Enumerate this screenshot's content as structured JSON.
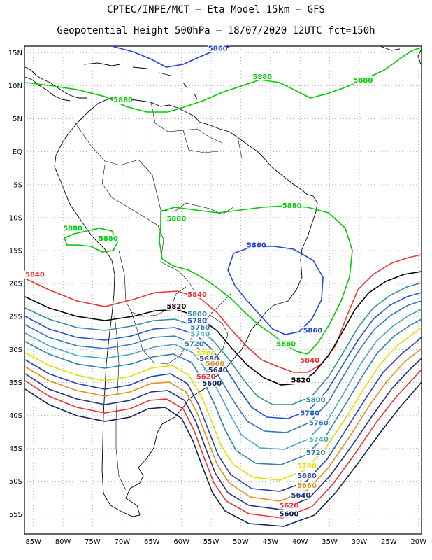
{
  "header": {
    "line1": "CPTEC/INPE/MCT –  Eta Model 15km – GFS",
    "line2": "Geopotential Height 500hPa – 18/07/2020 12UTC fct=150h"
  },
  "axes": {
    "lat_labels": [
      "15N",
      "10N",
      "5N",
      "EQ",
      "5S",
      "10S",
      "15S",
      "20S",
      "25S",
      "30S",
      "35S",
      "40S",
      "45S",
      "50S",
      "55S"
    ],
    "lon_labels": [
      "85W",
      "80W",
      "75W",
      "70W",
      "65W",
      "60W",
      "55W",
      "50W",
      "45W",
      "40W",
      "35W",
      "30W",
      "25W",
      "20W"
    ]
  },
  "colors": {
    "5880": "#00cc00",
    "5860": "#2244dd",
    "5840": "#ee3333",
    "5820": "#000000",
    "5800": "#2f8fa0",
    "5780": "#2255cc",
    "5760": "#3377bb",
    "5740": "#44a8c8",
    "5720": "#2a80b0",
    "5700": "#e0e000",
    "5680": "#2244aa",
    "5660": "#e09020",
    "5640": "#223377",
    "5620": "#ee3333",
    "5600": "#112255"
  },
  "contours": [
    {
      "level": "5860",
      "labels": [
        {
          "text": "5860",
          "lon": -55.5,
          "lat": 15.3
        }
      ]
    },
    {
      "level": "5880",
      "labels": [
        {
          "text": "5880",
          "lon": -71.5,
          "lat": 7.5
        },
        {
          "text": "5880",
          "lon": -48,
          "lat": 11
        },
        {
          "text": "5880",
          "lon": -31,
          "lat": 10.5
        },
        {
          "text": "5880",
          "lon": -43,
          "lat": -8.5
        },
        {
          "text": "5880",
          "lon": -62.5,
          "lat": -10.5
        },
        {
          "text": "5880",
          "lon": -80,
          "lat": -12
        },
        {
          "text": "5880",
          "lon": -74,
          "lat": -13.5
        },
        {
          "text": "5880",
          "lon": -44,
          "lat": -29.5
        }
      ]
    },
    {
      "level": "5860",
      "labels": [
        {
          "text": "5860",
          "lon": -49,
          "lat": -14.5
        },
        {
          "text": "5860",
          "lon": -39.5,
          "lat": -27.5
        }
      ]
    },
    {
      "level": "5840",
      "labels": [
        {
          "text": "5840",
          "lon": -86.5,
          "lat": -19
        },
        {
          "text": "5840",
          "lon": -59,
          "lat": -22
        },
        {
          "text": "5840",
          "lon": -40,
          "lat": -32
        }
      ]
    },
    {
      "level": "5820",
      "labels": [
        {
          "text": "5820",
          "lon": -62.5,
          "lat": -23.8
        },
        {
          "text": "5820",
          "lon": -41.5,
          "lat": -35
        }
      ]
    },
    {
      "level": "5800",
      "labels": [
        {
          "text": "5800",
          "lon": -59,
          "lat": -25
        },
        {
          "text": "5800",
          "lon": -39,
          "lat": -38
        }
      ]
    },
    {
      "level": "5780",
      "labels": [
        {
          "text": "5780",
          "lon": -59,
          "lat": -26
        },
        {
          "text": "5780",
          "lon": -40,
          "lat": -40
        }
      ]
    },
    {
      "level": "5760",
      "labels": [
        {
          "text": "5760",
          "lon": -58.5,
          "lat": -27
        },
        {
          "text": "5760",
          "lon": -38.5,
          "lat": -41.5
        }
      ]
    },
    {
      "level": "5740",
      "labels": [
        {
          "text": "5740",
          "lon": -58.5,
          "lat": -28
        },
        {
          "text": "5740",
          "lon": -38.5,
          "lat": -44
        }
      ]
    },
    {
      "level": "5720",
      "labels": [
        {
          "text": "5720",
          "lon": -59.5,
          "lat": -29.5
        },
        {
          "text": "5720",
          "lon": -39,
          "lat": -46
        }
      ]
    },
    {
      "level": "5700",
      "labels": [
        {
          "text": "5700",
          "lon": -57.5,
          "lat": -31
        },
        {
          "text": "5700",
          "lon": -40.5,
          "lat": -48
        }
      ]
    },
    {
      "level": "5680",
      "labels": [
        {
          "text": "5680",
          "lon": -57,
          "lat": -31.8
        },
        {
          "text": "5680",
          "lon": -40.5,
          "lat": -49.5
        }
      ]
    },
    {
      "level": "5660",
      "labels": [
        {
          "text": "5660",
          "lon": -56,
          "lat": -32.5
        },
        {
          "text": "5660",
          "lon": -40.5,
          "lat": -51
        }
      ]
    },
    {
      "level": "5640",
      "labels": [
        {
          "text": "5640",
          "lon": -55.5,
          "lat": -33.5
        },
        {
          "text": "5640",
          "lon": -41.5,
          "lat": -52.5
        }
      ]
    },
    {
      "level": "5620",
      "labels": [
        {
          "text": "5620",
          "lon": -57.5,
          "lat": -34.5
        },
        {
          "text": "5620",
          "lon": -43.5,
          "lat": -54
        }
      ]
    },
    {
      "level": "5600",
      "labels": [
        {
          "text": "5600",
          "lon": -56.5,
          "lat": -35.5
        },
        {
          "text": "5600",
          "lon": -43.5,
          "lat": -55.3
        }
      ]
    }
  ]
}
